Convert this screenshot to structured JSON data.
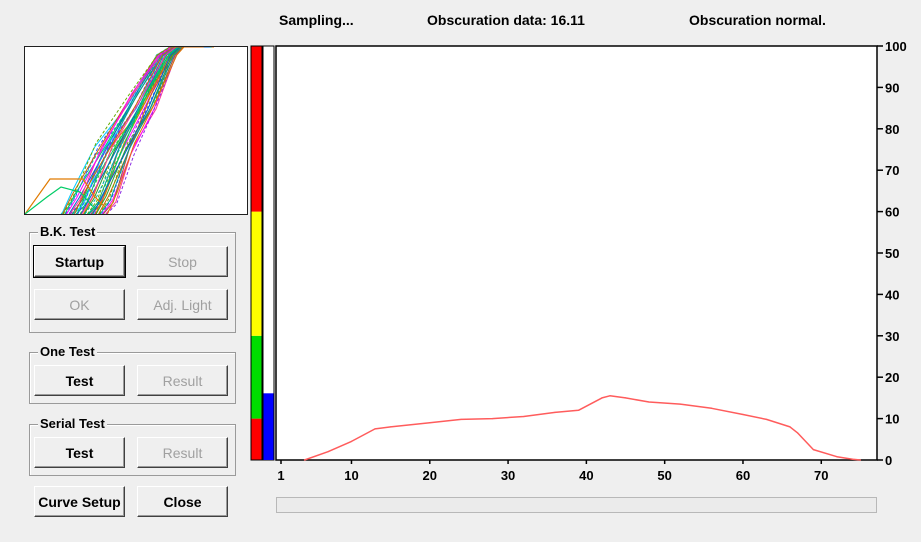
{
  "status": {
    "state": "Sampling...",
    "obscuration": "Obscuration data: 16.11",
    "message": "Obscuration normal."
  },
  "groups": {
    "bk_test": {
      "title": "B.K. Test",
      "startup": "Startup",
      "stop": "Stop",
      "ok": "OK",
      "adj_light": "Adj. Light"
    },
    "one_test": {
      "title": "One Test",
      "test": "Test",
      "result": "Result"
    },
    "serial_test": {
      "title": "Serial Test",
      "test": "Test",
      "result": "Result"
    }
  },
  "buttons": {
    "curve_setup": "Curve Setup",
    "close": "Close"
  },
  "level_bar": {
    "bands": [
      {
        "color": "#ff0000",
        "from": 0,
        "to": 10
      },
      {
        "color": "#00dd00",
        "from": 10,
        "to": 30
      },
      {
        "color": "#ffff00",
        "from": 30,
        "to": 60
      },
      {
        "color": "#ff0000",
        "from": 60,
        "to": 100
      }
    ],
    "obscuration_value": 16.11,
    "obscuration_color": "#0000ff"
  },
  "chart_data": {
    "type": "line",
    "series": [
      {
        "color": "#ff5c5c",
        "x": [
          4,
          7,
          10,
          13,
          15,
          20,
          24,
          28,
          32,
          36,
          39,
          42,
          43,
          45,
          48,
          52,
          56,
          60,
          63,
          66,
          67,
          69,
          72,
          74,
          75
        ],
        "y": [
          0,
          2,
          4.5,
          7.5,
          8,
          9,
          9.8,
          10,
          10.5,
          11.5,
          12,
          15,
          15.5,
          15,
          14,
          13.5,
          12.5,
          11,
          9.8,
          8,
          6.5,
          2.5,
          0.8,
          0.2,
          0
        ]
      }
    ],
    "x_ticks": [
      1,
      10,
      20,
      30,
      40,
      50,
      60,
      70
    ],
    "y_ticks": [
      0,
      10,
      20,
      30,
      40,
      50,
      60,
      70,
      80,
      90,
      100
    ],
    "xlim": [
      1,
      76
    ],
    "ylim": [
      0,
      100
    ],
    "grid": false
  },
  "colors": {
    "curve": "#ff5c5c",
    "window_bg": "#efefef"
  }
}
